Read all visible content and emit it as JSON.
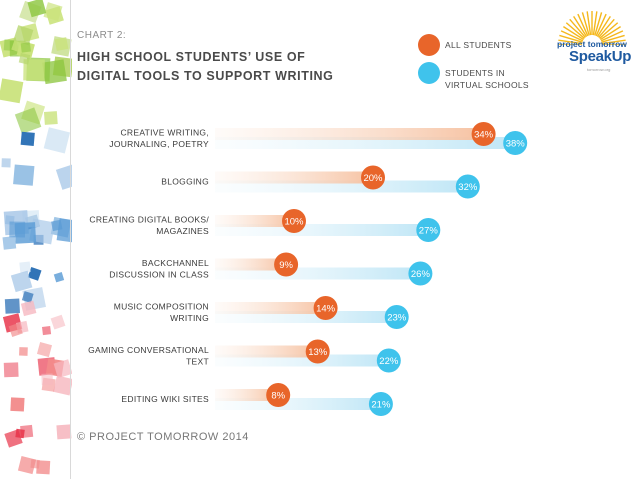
{
  "header": {
    "chart_label": "CHART 2:",
    "title_lines": [
      "HIGH SCHOOL STUDENTS’ USE OF",
      "DIGITAL TOOLS TO SUPPORT WRITING"
    ]
  },
  "legend": [
    {
      "label_lines": [
        "ALL STUDENTS"
      ],
      "color": "#e8652a"
    },
    {
      "label_lines": [
        "STUDENTS IN",
        "VIRTUAL SCHOOLS"
      ],
      "color": "#3fc3ec"
    }
  ],
  "logo": {
    "top_text": "project tomorrow",
    "main_text": "SpeakUp",
    "url_text": "tomorrow.org",
    "colors": {
      "sun": "#f5b81c",
      "blue": "#1f5aa0"
    }
  },
  "chart_data": {
    "type": "bar",
    "categories": [
      [
        "CREATIVE WRITING,",
        "JOURNALING, POETRY"
      ],
      [
        "BLOGGING"
      ],
      [
        "CREATING DIGITAL BOOKS/",
        "MAGAZINES"
      ],
      [
        "BACKCHANNEL",
        "DISCUSSION IN CLASS"
      ],
      [
        "MUSIC COMPOSITION",
        "WRITING"
      ],
      [
        "GAMING CONVERSATIONAL",
        "TEXT"
      ],
      [
        "EDITING WIKI SITES"
      ]
    ],
    "series": [
      {
        "name": "ALL STUDENTS",
        "values": [
          34,
          20,
          10,
          9,
          14,
          13,
          8
        ],
        "labels": [
          "34%",
          "20%",
          "10%",
          "9%",
          "14%",
          "13%",
          "8%"
        ],
        "color": "#e8652a"
      },
      {
        "name": "STUDENTS IN VIRTUAL SCHOOLS",
        "values": [
          38,
          32,
          27,
          26,
          23,
          22,
          21
        ],
        "labels": [
          "38%",
          "32%",
          "27%",
          "26%",
          "23%",
          "22%",
          "21%"
        ],
        "color": "#3fc3ec"
      }
    ],
    "orientation": "horizontal",
    "unit": "%"
  },
  "footer": {
    "text": "© PROJECT TOMORROW 2014"
  }
}
